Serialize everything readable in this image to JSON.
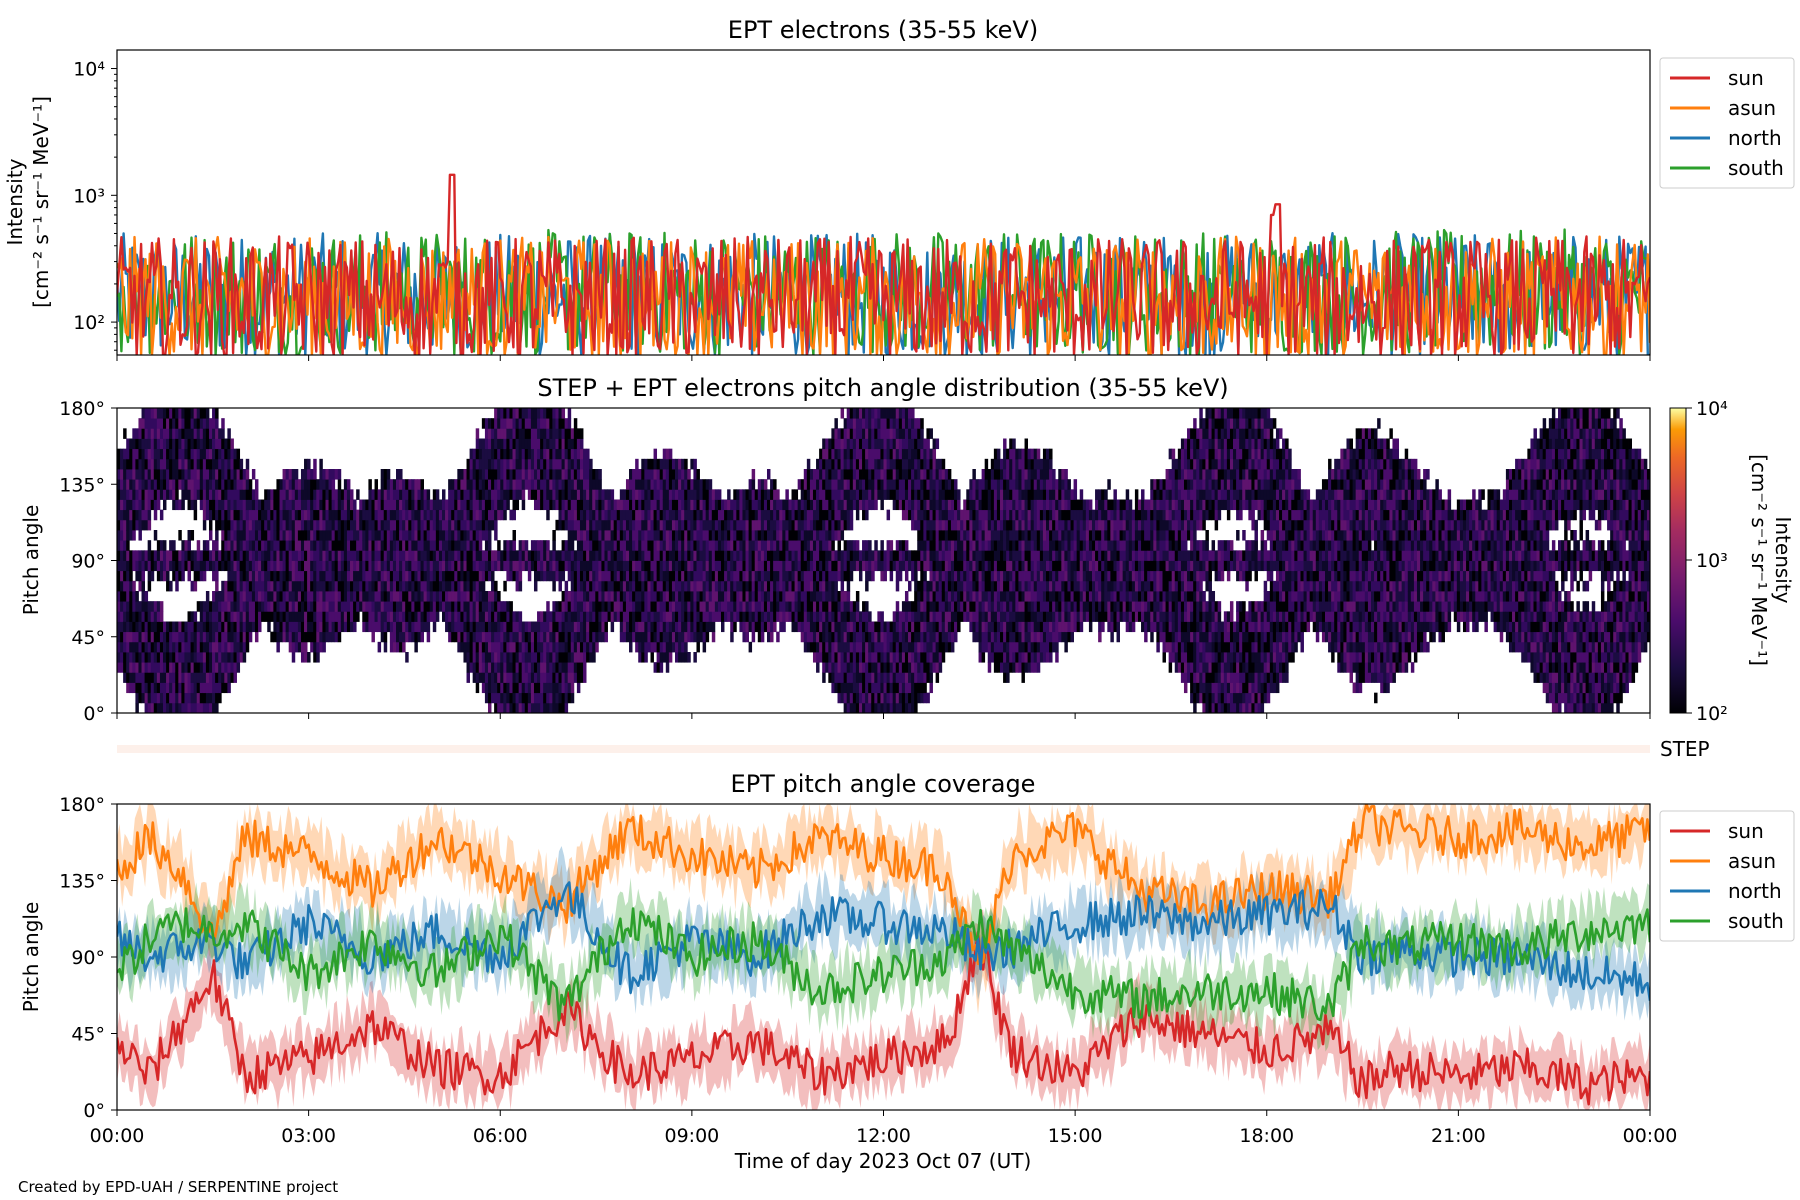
{
  "figure": {
    "credit": "Created by EPD-UAH / SERPENTINE project",
    "xlabel": "Time of day 2023 Oct 07 (UT)",
    "x_ticks": [
      "00:00",
      "03:00",
      "06:00",
      "09:00",
      "12:00",
      "15:00",
      "18:00",
      "21:00",
      "00:00"
    ]
  },
  "colors": {
    "sun": "#d62728",
    "asun": "#ff7f0e",
    "north": "#1f77b4",
    "south": "#2ca02c"
  },
  "chart_data": [
    {
      "type": "line",
      "title": "EPT electrons (35-55 keV)",
      "ylabel": "Intensity",
      "ylabel_units": "[cm⁻² s⁻¹ sr⁻¹ MeV⁻¹]",
      "yscale": "log",
      "ylim": [
        55,
        14000
      ],
      "y_ticks": [
        {
          "value": 100,
          "label": "10²"
        },
        {
          "value": 1000,
          "label": "10³"
        },
        {
          "value": 10000,
          "label": "10⁴"
        }
      ],
      "xlim_hours": [
        0,
        24
      ],
      "legend": "upper-right outside",
      "series": [
        {
          "name": "sun",
          "color": "#d62728",
          "baseline": 150,
          "spikes": [
            [
              5.25,
              1450
            ],
            [
              18.17,
              850
            ],
            [
              18.1,
              700
            ]
          ]
        },
        {
          "name": "asun",
          "color": "#ff7f0e",
          "baseline": 150,
          "spikes": [
            [
              5.3,
              300
            ]
          ]
        },
        {
          "name": "north",
          "color": "#1f77b4",
          "baseline": 160,
          "spikes": []
        },
        {
          "name": "south",
          "color": "#2ca02c",
          "baseline": 170,
          "spikes": []
        }
      ]
    },
    {
      "type": "heatmap",
      "title": "STEP + EPT electrons pitch angle distribution (35-55 keV)",
      "ylabel": "Pitch angle",
      "ylim": [
        0,
        180
      ],
      "y_ticks": [
        "0°",
        "45°",
        "90°",
        "135°",
        "180°"
      ],
      "colorbar": {
        "label": "Intensity",
        "label_units": "[cm⁻² s⁻¹ sr⁻¹ MeV⁻¹]",
        "scale": "log",
        "range": [
          100,
          10000
        ],
        "ticks": [
          "10²",
          "10³",
          "10⁴"
        ],
        "colormap": "inferno"
      },
      "typical_intensity": 200
    },
    {
      "type": "bar",
      "label": "STEP",
      "color": "#fdf0ea"
    },
    {
      "type": "line",
      "title": "EPT pitch angle coverage",
      "ylabel": "Pitch angle",
      "ylim": [
        0,
        180
      ],
      "y_ticks": [
        "0°",
        "45°",
        "90°",
        "135°",
        "180°"
      ],
      "legend": "upper-right outside",
      "series": [
        {
          "name": "sun",
          "color": "#d62728",
          "x": [
            0,
            0.5,
            1,
            1.5,
            2,
            3,
            4,
            5,
            6,
            7,
            8,
            9,
            10,
            11,
            12,
            13,
            13.5,
            14,
            15,
            16,
            17,
            18,
            19,
            19.5,
            20,
            21,
            22,
            23,
            24
          ],
          "y": [
            40,
            20,
            50,
            80,
            20,
            30,
            50,
            25,
            20,
            60,
            20,
            30,
            40,
            20,
            30,
            40,
            100,
            35,
            20,
            55,
            45,
            35,
            45,
            15,
            25,
            20,
            25,
            15,
            20
          ]
        },
        {
          "name": "asun",
          "color": "#ff7f0e",
          "x": [
            0,
            0.5,
            1,
            1.5,
            2,
            3,
            4,
            5,
            6,
            7,
            8,
            9,
            10,
            11,
            12,
            13,
            13.5,
            14,
            15,
            16,
            17,
            18,
            19,
            19.5,
            20,
            21,
            22,
            23,
            24
          ],
          "y": [
            140,
            160,
            140,
            100,
            160,
            150,
            130,
            160,
            140,
            120,
            165,
            150,
            140,
            160,
            150,
            140,
            80,
            150,
            165,
            130,
            120,
            130,
            125,
            170,
            165,
            160,
            165,
            155,
            165
          ]
        },
        {
          "name": "north",
          "color": "#1f77b4",
          "x": [
            0,
            0.5,
            1,
            1.5,
            2,
            3,
            4,
            5,
            6,
            7,
            8,
            9,
            10,
            11,
            12,
            13,
            13.5,
            14,
            15,
            16,
            17,
            18,
            19,
            19.5,
            20,
            21,
            22,
            23,
            24
          ],
          "y": [
            100,
            90,
            95,
            100,
            85,
            110,
            90,
            105,
            90,
            130,
            80,
            100,
            90,
            115,
            110,
            105,
            90,
            95,
            110,
            115,
            110,
            115,
            120,
            90,
            95,
            90,
            90,
            80,
            75
          ]
        },
        {
          "name": "south",
          "color": "#2ca02c",
          "x": [
            0,
            0.5,
            1,
            1.5,
            2,
            3,
            4,
            5,
            6,
            7,
            8,
            9,
            10,
            11,
            12,
            13,
            13.5,
            14,
            15,
            16,
            17,
            18,
            19,
            19.5,
            20,
            21,
            22,
            23,
            24
          ],
          "y": [
            80,
            100,
            110,
            105,
            110,
            80,
            100,
            80,
            105,
            60,
            115,
            90,
            100,
            70,
            80,
            90,
            110,
            95,
            70,
            65,
            70,
            70,
            60,
            100,
            95,
            100,
            95,
            105,
            110
          ]
        }
      ]
    }
  ]
}
